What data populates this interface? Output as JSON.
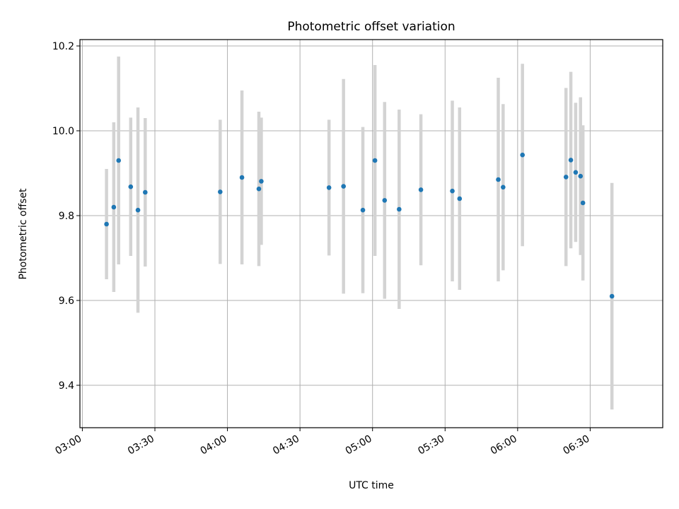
{
  "chart_data": {
    "type": "scatter",
    "title": "Photometric offset variation",
    "xlabel": "UTC time",
    "ylabel": "Photometric offset",
    "x_ticks": [
      "03:00",
      "03:30",
      "04:00",
      "04:30",
      "05:00",
      "05:30",
      "06:00",
      "06:30"
    ],
    "y_ticks": [
      "9.4",
      "9.6",
      "9.8",
      "10.0",
      "10.2"
    ],
    "xlim": [
      "02:59",
      "07:00"
    ],
    "ylim": [
      9.3,
      10.215
    ],
    "grid": true,
    "colors": {
      "marker": "#1f77b4",
      "errorbar": "#d3d3d3",
      "grid": "#b0b0b0"
    },
    "points": [
      {
        "time": "03:10",
        "y": 9.78,
        "err": 0.13
      },
      {
        "time": "03:13",
        "y": 9.82,
        "err": 0.2
      },
      {
        "time": "03:15",
        "y": 9.93,
        "err": 0.245
      },
      {
        "time": "03:20",
        "y": 9.868,
        "err": 0.163
      },
      {
        "time": "03:23",
        "y": 9.813,
        "err": 0.242
      },
      {
        "time": "03:26",
        "y": 9.855,
        "err": 0.175
      },
      {
        "time": "03:57",
        "y": 9.856,
        "err": 0.17
      },
      {
        "time": "04:06",
        "y": 9.89,
        "err": 0.205
      },
      {
        "time": "04:13",
        "y": 9.863,
        "err": 0.182
      },
      {
        "time": "04:14",
        "y": 9.881,
        "err": 0.15
      },
      {
        "time": "04:42",
        "y": 9.866,
        "err": 0.16
      },
      {
        "time": "04:48",
        "y": 9.869,
        "err": 0.253
      },
      {
        "time": "04:56",
        "y": 9.813,
        "err": 0.196
      },
      {
        "time": "05:01",
        "y": 9.93,
        "err": 0.225
      },
      {
        "time": "05:05",
        "y": 9.836,
        "err": 0.232
      },
      {
        "time": "05:11",
        "y": 9.815,
        "err": 0.235
      },
      {
        "time": "05:20",
        "y": 9.861,
        "err": 0.178
      },
      {
        "time": "05:33",
        "y": 9.858,
        "err": 0.213
      },
      {
        "time": "05:36",
        "y": 9.84,
        "err": 0.215
      },
      {
        "time": "05:52",
        "y": 9.885,
        "err": 0.24
      },
      {
        "time": "05:54",
        "y": 9.867,
        "err": 0.196
      },
      {
        "time": "06:02",
        "y": 9.943,
        "err": 0.215
      },
      {
        "time": "06:20",
        "y": 9.891,
        "err": 0.21
      },
      {
        "time": "06:22",
        "y": 9.931,
        "err": 0.208
      },
      {
        "time": "06:24",
        "y": 9.902,
        "err": 0.164
      },
      {
        "time": "06:26",
        "y": 9.893,
        "err": 0.186
      },
      {
        "time": "06:27",
        "y": 9.83,
        "err": 0.183
      },
      {
        "time": "06:39",
        "y": 9.61,
        "err": 0.267
      }
    ]
  }
}
